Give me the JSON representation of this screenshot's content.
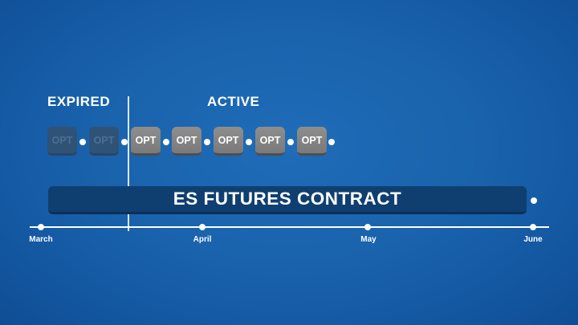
{
  "sections": {
    "expired": "EXPIRED",
    "active": "ACTIVE"
  },
  "options": [
    {
      "label": "OPT",
      "status": "expired"
    },
    {
      "label": "OPT",
      "status": "expired"
    },
    {
      "label": "OPT",
      "status": "active"
    },
    {
      "label": "OPT",
      "status": "active"
    },
    {
      "label": "OPT",
      "status": "active"
    },
    {
      "label": "OPT",
      "status": "active"
    },
    {
      "label": "OPT",
      "status": "active"
    }
  ],
  "contract": {
    "label": "ES FUTURES CONTRACT"
  },
  "timeline": {
    "months": [
      "March",
      "April",
      "May",
      "June"
    ]
  },
  "colors": {
    "background": "#1a63ad",
    "option_active": "#808080",
    "option_expired": "#2f5377",
    "contract_bar": "#0f3f70",
    "line": "#ffffff"
  }
}
